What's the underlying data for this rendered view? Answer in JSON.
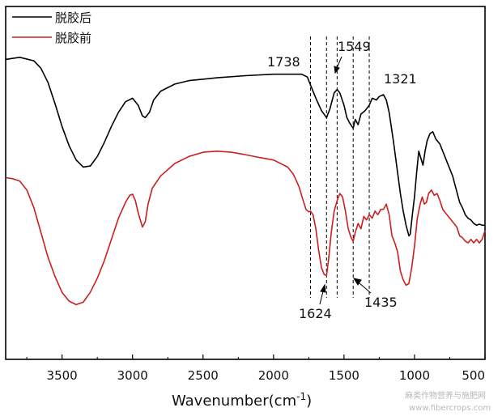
{
  "chart_data": {
    "type": "line",
    "title": "",
    "xlabel": "Wavenumber(cm",
    "xlabel_sup": "-1",
    "xlabel_close": ")",
    "ylabel": "",
    "xlim": [
      3900,
      500
    ],
    "x_reversed": true,
    "ylim": [
      0,
      100
    ],
    "grid": false,
    "legend_position": "top-left",
    "x_ticks": [
      "3500",
      "3000",
      "2500",
      "2000",
      "1500",
      "1000",
      "500"
    ],
    "series": [
      {
        "name": "脱胶后",
        "color": "#000000",
        "points": [
          [
            3900,
            85
          ],
          [
            3800,
            85.6
          ],
          [
            3700,
            84.6
          ],
          [
            3650,
            82.5
          ],
          [
            3600,
            78.5
          ],
          [
            3550,
            72.5
          ],
          [
            3500,
            66
          ],
          [
            3450,
            60.5
          ],
          [
            3400,
            56.5
          ],
          [
            3350,
            54.5
          ],
          [
            3300,
            54.8
          ],
          [
            3250,
            57.5
          ],
          [
            3200,
            61.5
          ],
          [
            3150,
            66
          ],
          [
            3100,
            70
          ],
          [
            3050,
            73
          ],
          [
            3000,
            74
          ],
          [
            2960,
            72
          ],
          [
            2930,
            69
          ],
          [
            2910,
            68.5
          ],
          [
            2880,
            70
          ],
          [
            2850,
            73.5
          ],
          [
            2800,
            76
          ],
          [
            2700,
            78
          ],
          [
            2600,
            79
          ],
          [
            2400,
            79.8
          ],
          [
            2200,
            80.4
          ],
          [
            2000,
            80.8
          ],
          [
            1900,
            80.8
          ],
          [
            1800,
            80.8
          ],
          [
            1760,
            80
          ],
          [
            1738,
            77.8
          ],
          [
            1700,
            74
          ],
          [
            1660,
            70.5
          ],
          [
            1624,
            68.5
          ],
          [
            1600,
            71
          ],
          [
            1570,
            75.5
          ],
          [
            1549,
            76.5
          ],
          [
            1530,
            75.5
          ],
          [
            1500,
            72
          ],
          [
            1480,
            68.5
          ],
          [
            1460,
            67
          ],
          [
            1435,
            65.5
          ],
          [
            1420,
            68
          ],
          [
            1400,
            66.5
          ],
          [
            1380,
            69.5
          ],
          [
            1350,
            70.5
          ],
          [
            1321,
            72
          ],
          [
            1300,
            74
          ],
          [
            1270,
            73.5
          ],
          [
            1250,
            74.5
          ],
          [
            1220,
            75
          ],
          [
            1200,
            73.5
          ],
          [
            1180,
            70
          ],
          [
            1150,
            62
          ],
          [
            1120,
            53
          ],
          [
            1100,
            47
          ],
          [
            1080,
            42
          ],
          [
            1060,
            38
          ],
          [
            1040,
            35
          ],
          [
            1030,
            35.5
          ],
          [
            1015,
            41
          ],
          [
            1000,
            46
          ],
          [
            985,
            53
          ],
          [
            970,
            59
          ],
          [
            955,
            57
          ],
          [
            940,
            55
          ],
          [
            925,
            59
          ],
          [
            910,
            62
          ],
          [
            890,
            64
          ],
          [
            870,
            64.5
          ],
          [
            850,
            62.5
          ],
          [
            820,
            61
          ],
          [
            790,
            58
          ],
          [
            760,
            55
          ],
          [
            730,
            52
          ],
          [
            700,
            47.5
          ],
          [
            680,
            44.5
          ],
          [
            660,
            43
          ],
          [
            640,
            41
          ],
          [
            620,
            40
          ],
          [
            600,
            39.5
          ],
          [
            580,
            38.5
          ],
          [
            560,
            38
          ],
          [
            540,
            38.3
          ],
          [
            520,
            38
          ],
          [
            500,
            38
          ]
        ]
      },
      {
        "name": "脱胶前",
        "color": "#cc1f1f",
        "points": [
          [
            3900,
            51.5
          ],
          [
            3850,
            51.2
          ],
          [
            3800,
            50.5
          ],
          [
            3750,
            48
          ],
          [
            3700,
            43
          ],
          [
            3650,
            36
          ],
          [
            3600,
            29
          ],
          [
            3550,
            23.5
          ],
          [
            3500,
            19
          ],
          [
            3450,
            16.5
          ],
          [
            3400,
            15.5
          ],
          [
            3350,
            16.2
          ],
          [
            3300,
            19
          ],
          [
            3250,
            23
          ],
          [
            3200,
            28
          ],
          [
            3150,
            34
          ],
          [
            3100,
            40
          ],
          [
            3050,
            44.5
          ],
          [
            3020,
            46.5
          ],
          [
            3000,
            46.8
          ],
          [
            2980,
            45
          ],
          [
            2960,
            41.5
          ],
          [
            2930,
            37.5
          ],
          [
            2910,
            39
          ],
          [
            2890,
            44
          ],
          [
            2860,
            48.5
          ],
          [
            2800,
            52
          ],
          [
            2700,
            55.5
          ],
          [
            2600,
            57.5
          ],
          [
            2500,
            58.7
          ],
          [
            2400,
            59
          ],
          [
            2300,
            58.7
          ],
          [
            2200,
            58
          ],
          [
            2100,
            57.2
          ],
          [
            2000,
            56.5
          ],
          [
            1900,
            54.5
          ],
          [
            1860,
            52.5
          ],
          [
            1820,
            49
          ],
          [
            1790,
            45
          ],
          [
            1770,
            42.5
          ],
          [
            1750,
            41.8
          ],
          [
            1738,
            42
          ],
          [
            1720,
            41
          ],
          [
            1700,
            37
          ],
          [
            1680,
            31
          ],
          [
            1660,
            26
          ],
          [
            1640,
            24
          ],
          [
            1624,
            23.8
          ],
          [
            1610,
            28
          ],
          [
            1590,
            36
          ],
          [
            1570,
            42
          ],
          [
            1549,
            45
          ],
          [
            1530,
            47
          ],
          [
            1510,
            46
          ],
          [
            1490,
            42
          ],
          [
            1470,
            37
          ],
          [
            1450,
            34.5
          ],
          [
            1435,
            33.5
          ],
          [
            1420,
            36
          ],
          [
            1400,
            38.5
          ],
          [
            1380,
            37
          ],
          [
            1360,
            40.5
          ],
          [
            1340,
            39.5
          ],
          [
            1321,
            41
          ],
          [
            1300,
            40
          ],
          [
            1280,
            42
          ],
          [
            1260,
            41
          ],
          [
            1240,
            42.5
          ],
          [
            1220,
            42.5
          ],
          [
            1200,
            44
          ],
          [
            1180,
            41
          ],
          [
            1160,
            35
          ],
          [
            1140,
            33
          ],
          [
            1120,
            30.5
          ],
          [
            1100,
            25
          ],
          [
            1080,
            22.5
          ],
          [
            1060,
            21
          ],
          [
            1040,
            21.5
          ],
          [
            1020,
            26
          ],
          [
            1000,
            32
          ],
          [
            980,
            40
          ],
          [
            960,
            44
          ],
          [
            945,
            46
          ],
          [
            930,
            44
          ],
          [
            915,
            44.5
          ],
          [
            900,
            47
          ],
          [
            880,
            48
          ],
          [
            860,
            46.5
          ],
          [
            840,
            47
          ],
          [
            820,
            45
          ],
          [
            800,
            42.5
          ],
          [
            780,
            41.5
          ],
          [
            760,
            40.5
          ],
          [
            740,
            39.5
          ],
          [
            720,
            38.5
          ],
          [
            700,
            37.5
          ],
          [
            680,
            35
          ],
          [
            660,
            34.5
          ],
          [
            640,
            33.5
          ],
          [
            620,
            33
          ],
          [
            600,
            34
          ],
          [
            580,
            33
          ],
          [
            560,
            34
          ],
          [
            540,
            33
          ],
          [
            520,
            34
          ],
          [
            500,
            36.5
          ]
        ]
      }
    ],
    "reference_lines": [
      1738,
      1624,
      1549,
      1435,
      1321
    ],
    "annotations": [
      "1738",
      "1549",
      "1321",
      "1624",
      "1435"
    ]
  },
  "watermark": {
    "line1": "麻类作物营养与施肥网",
    "line2": "www.fibercrops.com"
  }
}
